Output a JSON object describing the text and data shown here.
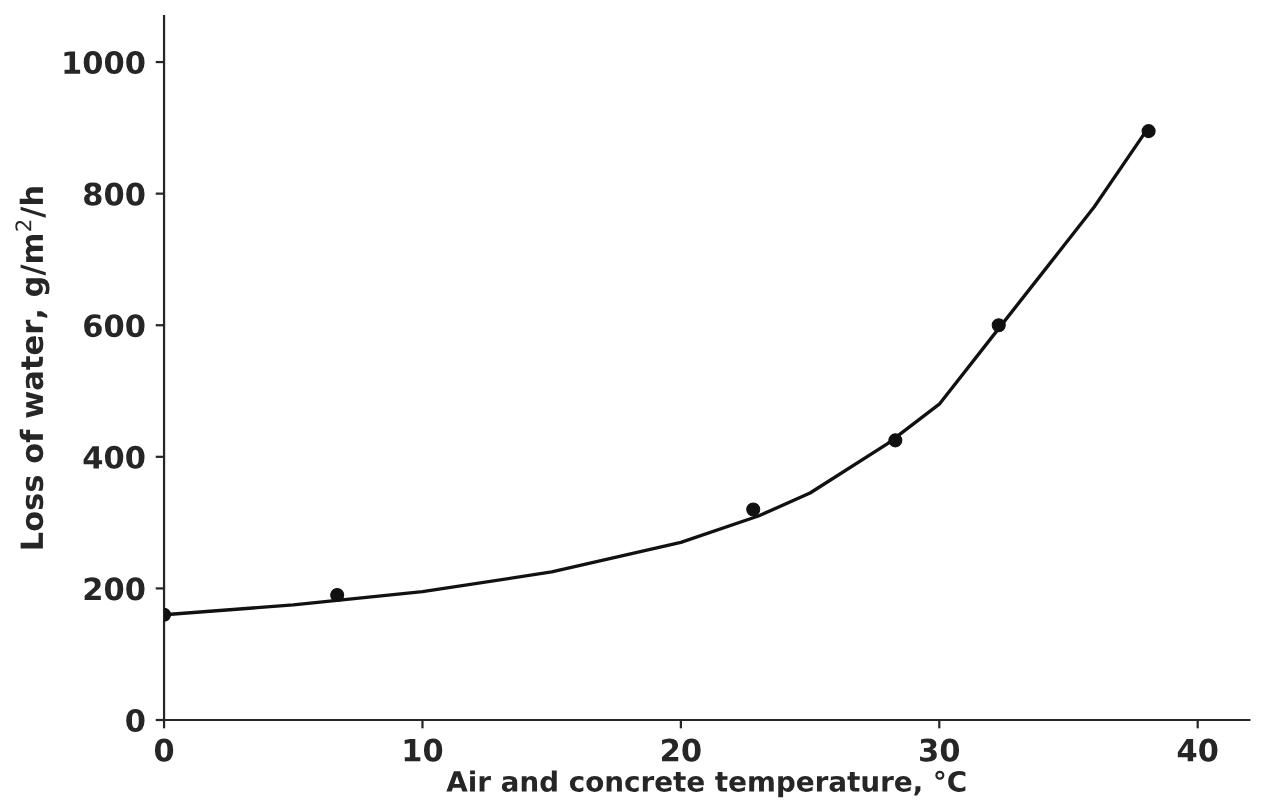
{
  "chart_data": {
    "type": "line",
    "xlabel": "Air and concrete temperature, °C",
    "ylabel": "Loss of water, g/m$^{2}$/h",
    "xlim": [
      0,
      42
    ],
    "xticks": [
      0,
      10,
      20,
      30,
      40
    ],
    "ylim": [
      0,
      1070
    ],
    "yticks": [
      0,
      200,
      400,
      600,
      800,
      1000
    ],
    "grid": false,
    "legend": false,
    "series": [
      {
        "type": "scatter",
        "marker": "circle",
        "color": "#111111",
        "x": [
          0,
          6.7,
          22.8,
          28.3,
          32.3,
          38.1
        ],
        "values": [
          160,
          190,
          320,
          425,
          600,
          895
        ]
      },
      {
        "color": "#111111",
        "line_style": "solid",
        "x": [
          0,
          5,
          10,
          15,
          20,
          23,
          25,
          28,
          30,
          32,
          34,
          36,
          38
        ],
        "values": [
          160,
          175,
          195,
          225,
          270,
          310,
          345,
          420,
          480,
          580,
          680,
          780,
          895
        ]
      }
    ]
  }
}
